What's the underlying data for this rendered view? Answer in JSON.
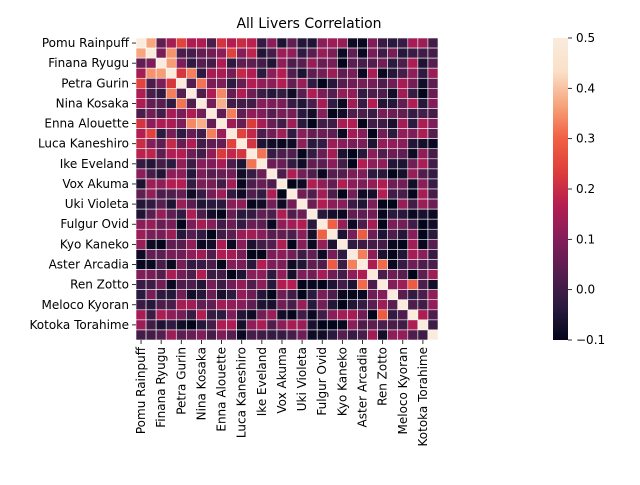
{
  "chart_data": {
    "type": "heatmap",
    "title": "All Livers Correlation",
    "xlabel": "",
    "ylabel": "",
    "n": 20,
    "tick_labels": [
      "Pomu Rainpuff",
      "Finana Ryugu",
      "Petra Gurin",
      "Nina Kosaka",
      "Enna Alouette",
      "Luca Kaneshiro",
      "Ike Eveland",
      "Vox Akuma",
      "Uki Violeta",
      "Fulgur Ovid",
      "Kyo Kaneko",
      "Aster Arcadia",
      "Ren Zotto",
      "Meloco Kyoran",
      "Kotoka Torahime"
    ],
    "tick_positions": [
      0,
      2,
      4,
      6,
      8,
      10,
      12,
      14,
      16,
      18,
      20,
      22,
      24,
      26,
      28
    ],
    "grid_size": 30,
    "colorbar": {
      "vmin": -0.1,
      "vmax": 0.5,
      "ticks": [
        -0.1,
        0.0,
        0.1,
        0.2,
        0.3,
        0.4,
        0.5
      ],
      "tick_labels": [
        "−0.1",
        "0.0",
        "0.1",
        "0.2",
        "0.3",
        "0.4",
        "0.5"
      ]
    },
    "colormap": [
      "#03051a",
      "#2b1a3f",
      "#541e4e",
      "#841e5a",
      "#b41d51",
      "#dd3d3b",
      "#f06043",
      "#f6a47c",
      "#fae0c8",
      "#faebdd"
    ],
    "notable_values": [
      {
        "row": 0,
        "col": 1,
        "value": 0.37
      },
      {
        "row": 1,
        "col": 3,
        "value": 0.35
      },
      {
        "row": 2,
        "col": 3,
        "value": 0.36
      },
      {
        "row": 3,
        "col": 5,
        "value": 0.33
      },
      {
        "row": 4,
        "col": 6,
        "value": 0.32
      },
      {
        "row": 5,
        "col": 8,
        "value": 0.34
      },
      {
        "row": 6,
        "col": 8,
        "value": 0.38
      },
      {
        "row": 7,
        "col": 9,
        "value": 0.33
      },
      {
        "row": 11,
        "col": 12,
        "value": 0.32
      },
      {
        "row": 14,
        "col": 10,
        "value": -0.09
      },
      {
        "row": 15,
        "col": 10,
        "value": -0.08
      },
      {
        "row": 18,
        "col": 19,
        "value": 0.3
      },
      {
        "row": 19,
        "col": 22,
        "value": 0.29
      },
      {
        "row": 21,
        "col": 22,
        "value": 0.33
      },
      {
        "row": 22,
        "col": 24,
        "value": 0.31
      },
      {
        "row": 27,
        "col": 24,
        "value": 0.29
      },
      {
        "row": 13,
        "col": 18,
        "value": -0.09
      },
      {
        "row": 0,
        "col": 22,
        "value": -0.09
      }
    ]
  }
}
